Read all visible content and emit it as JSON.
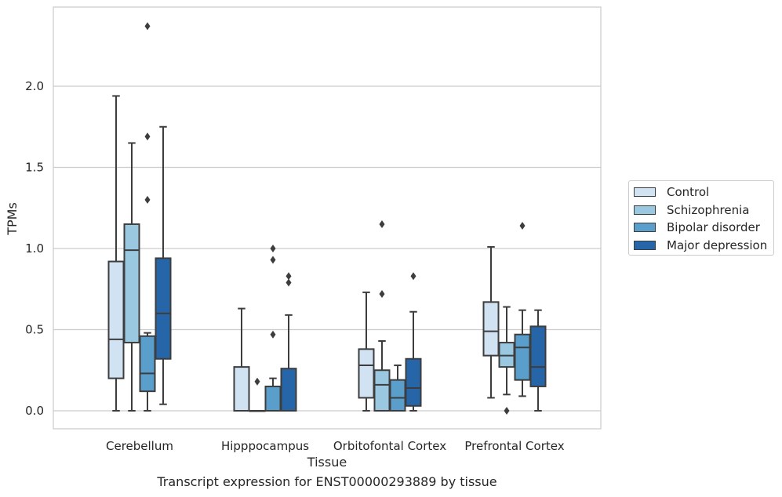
{
  "chart_data": {
    "type": "boxplot",
    "xlabel": "Tissue",
    "ylabel": "TPMs",
    "caption": "Transcript expression for ENST00000293889 by tissue",
    "ylim": [
      -0.11,
      2.48
    ],
    "yticks": [
      0.0,
      0.5,
      1.0,
      1.5,
      2.0
    ],
    "ytick_labels": [
      "0.0",
      "0.5",
      "1.0",
      "1.5",
      "2.0"
    ],
    "grid": "horizontal",
    "legend_position": "right",
    "categories": [
      "Cerebellum",
      "Hipppocampus",
      "Orbitofontal Cortex",
      "Prefrontal Cortex"
    ],
    "series": [
      {
        "name": "Control",
        "color": "#d1e2f2",
        "boxes": [
          {
            "whislo": 0.0,
            "q1": 0.2,
            "med": 0.44,
            "q3": 0.92,
            "whishi": 1.94,
            "fliers": []
          },
          {
            "whislo": 0.0,
            "q1": 0.0,
            "med": 0.0,
            "q3": 0.27,
            "whishi": 0.63,
            "fliers": []
          },
          {
            "whislo": 0.0,
            "q1": 0.08,
            "med": 0.28,
            "q3": 0.38,
            "whishi": 0.73,
            "fliers": []
          },
          {
            "whislo": 0.08,
            "q1": 0.34,
            "med": 0.49,
            "q3": 0.67,
            "whishi": 1.01,
            "fliers": []
          }
        ]
      },
      {
        "name": "Schizophrenia",
        "color": "#9ac8e0",
        "boxes": [
          {
            "whislo": 0.0,
            "q1": 0.42,
            "med": 0.99,
            "q3": 1.15,
            "whishi": 1.65,
            "fliers": []
          },
          {
            "whislo": 0.0,
            "q1": 0.0,
            "med": 0.0,
            "q3": 0.0,
            "whishi": 0.0,
            "fliers": [
              0.18
            ]
          },
          {
            "whislo": 0.0,
            "q1": 0.0,
            "med": 0.16,
            "q3": 0.25,
            "whishi": 0.43,
            "fliers": [
              0.72,
              1.15
            ]
          },
          {
            "whislo": 0.1,
            "q1": 0.27,
            "med": 0.34,
            "q3": 0.42,
            "whishi": 0.64,
            "fliers": [
              0.0
            ]
          }
        ]
      },
      {
        "name": "Bipolar disorder",
        "color": "#5a9fcc",
        "boxes": [
          {
            "whislo": 0.0,
            "q1": 0.12,
            "med": 0.23,
            "q3": 0.46,
            "whishi": 0.48,
            "fliers": [
              1.3,
              1.69,
              2.37
            ]
          },
          {
            "whislo": 0.0,
            "q1": 0.0,
            "med": 0.0,
            "q3": 0.15,
            "whishi": 0.2,
            "fliers": [
              0.47,
              0.93,
              1.0
            ]
          },
          {
            "whislo": 0.0,
            "q1": 0.0,
            "med": 0.08,
            "q3": 0.19,
            "whishi": 0.28,
            "fliers": []
          },
          {
            "whislo": 0.09,
            "q1": 0.19,
            "med": 0.39,
            "q3": 0.47,
            "whishi": 0.62,
            "fliers": [
              1.14
            ]
          }
        ]
      },
      {
        "name": "Major depression",
        "color": "#2666a8",
        "boxes": [
          {
            "whislo": 0.04,
            "q1": 0.32,
            "med": 0.6,
            "q3": 0.94,
            "whishi": 1.75,
            "fliers": []
          },
          {
            "whislo": 0.0,
            "q1": 0.0,
            "med": 0.0,
            "q3": 0.26,
            "whishi": 0.59,
            "fliers": [
              0.79,
              0.83
            ]
          },
          {
            "whislo": 0.0,
            "q1": 0.03,
            "med": 0.14,
            "q3": 0.32,
            "whishi": 0.61,
            "fliers": [
              0.83
            ]
          },
          {
            "whislo": 0.0,
            "q1": 0.15,
            "med": 0.27,
            "q3": 0.52,
            "whishi": 0.62,
            "fliers": []
          }
        ]
      }
    ]
  }
}
